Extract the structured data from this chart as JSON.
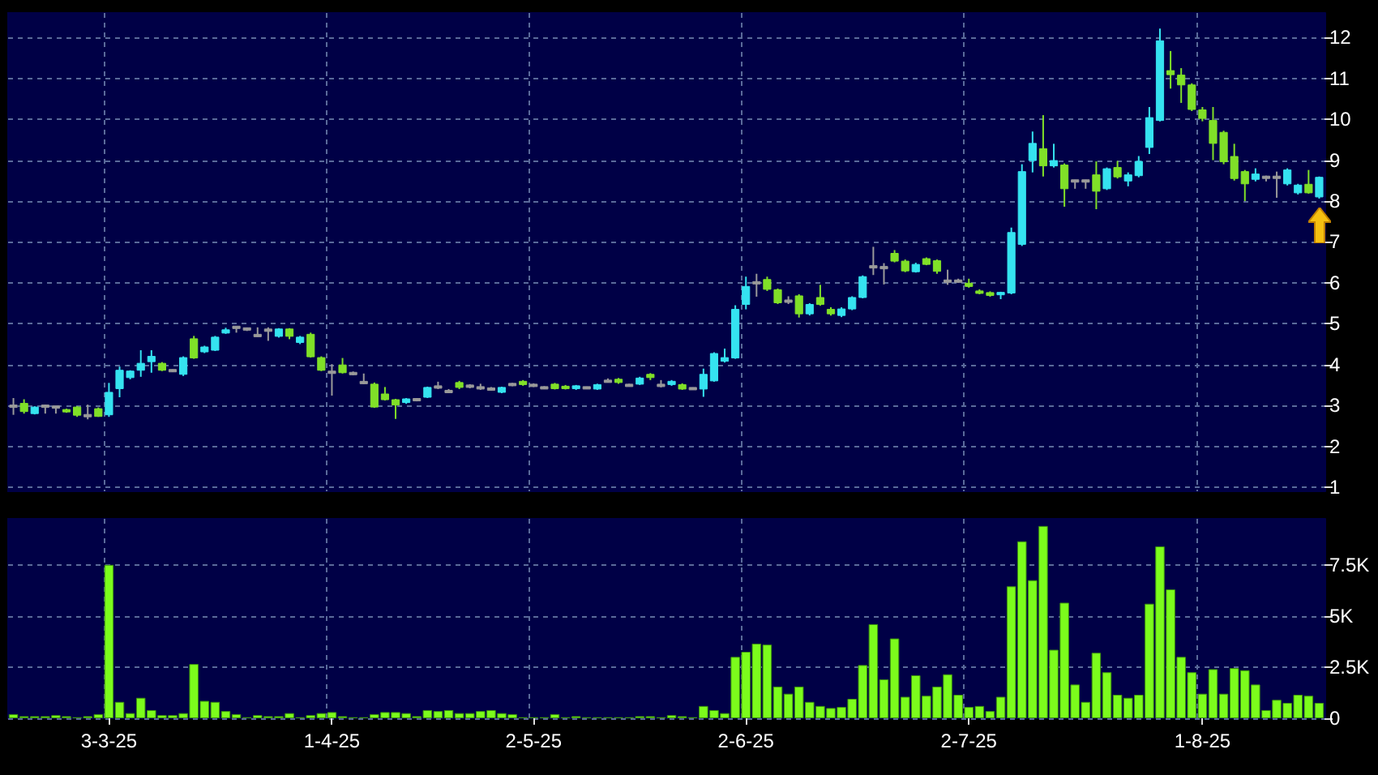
{
  "chart_data": [
    {
      "type": "candlestick",
      "categories": [
        null,
        null,
        null,
        null,
        null,
        null,
        null,
        null,
        null,
        null,
        null,
        null,
        null,
        null,
        null,
        null,
        null,
        null,
        null,
        null,
        null,
        null,
        null,
        null,
        null,
        null,
        null,
        null,
        null,
        null,
        null,
        null,
        null,
        null,
        null,
        null,
        null,
        null,
        null,
        null,
        null,
        null,
        null,
        null,
        null,
        null,
        null,
        null,
        null,
        null,
        null,
        null,
        null,
        null,
        null,
        null,
        null,
        null,
        null,
        null,
        null,
        null,
        null,
        null,
        null,
        null,
        null,
        null,
        null,
        null,
        null,
        null,
        null,
        null,
        null,
        null,
        null,
        null,
        null,
        null,
        null,
        null,
        null,
        null,
        null,
        null,
        null,
        null,
        null,
        null,
        null,
        null,
        null,
        null,
        null,
        null,
        null,
        null,
        null,
        null,
        null,
        null,
        null,
        null,
        null,
        null,
        null,
        null,
        null,
        null,
        null,
        null,
        null,
        null,
        null,
        null,
        null,
        null,
        null,
        null,
        null,
        null,
        null,
        null
      ],
      "ohlc": [
        [
          2.98,
          3.18,
          2.77,
          2.98
        ],
        [
          3.05,
          3.15,
          2.8,
          2.85
        ],
        [
          2.8,
          2.98,
          2.78,
          2.96
        ],
        [
          2.98,
          3.02,
          2.8,
          2.98
        ],
        [
          2.96,
          2.98,
          2.8,
          2.96
        ],
        [
          2.9,
          2.92,
          2.82,
          2.84
        ],
        [
          2.96,
          2.98,
          2.72,
          2.76
        ],
        [
          2.75,
          3.02,
          2.66,
          2.75
        ],
        [
          2.92,
          2.95,
          2.72,
          2.73
        ],
        [
          2.77,
          3.55,
          2.72,
          3.32
        ],
        [
          3.41,
          3.95,
          3.2,
          3.86
        ],
        [
          3.68,
          3.86,
          3.64,
          3.84
        ],
        [
          3.86,
          4.35,
          3.7,
          4.03
        ],
        [
          4.07,
          4.35,
          3.8,
          4.2
        ],
        [
          4.03,
          4.06,
          3.84,
          3.86
        ],
        [
          3.85,
          3.88,
          3.82,
          3.85
        ],
        [
          3.76,
          4.2,
          3.72,
          4.17
        ],
        [
          4.63,
          4.7,
          4.14,
          4.16
        ],
        [
          4.31,
          4.46,
          4.28,
          4.43
        ],
        [
          4.35,
          4.7,
          4.33,
          4.67
        ],
        [
          4.77,
          4.9,
          4.75,
          4.85
        ],
        [
          4.91,
          4.93,
          4.78,
          4.91
        ],
        [
          4.87,
          4.9,
          4.82,
          4.87
        ],
        [
          4.71,
          4.91,
          4.68,
          4.71
        ],
        [
          4.84,
          4.91,
          4.58,
          4.84
        ],
        [
          4.69,
          4.89,
          4.66,
          4.87
        ],
        [
          4.87,
          4.89,
          4.62,
          4.69
        ],
        [
          4.54,
          4.7,
          4.5,
          4.67
        ],
        [
          4.74,
          4.78,
          4.17,
          4.19
        ],
        [
          4.17,
          4.2,
          3.84,
          3.86
        ],
        [
          3.81,
          4.01,
          3.24,
          3.81
        ],
        [
          3.99,
          4.16,
          3.78,
          3.8
        ],
        [
          3.78,
          3.83,
          3.74,
          3.78
        ],
        [
          3.56,
          3.78,
          3.52,
          3.56
        ],
        [
          3.52,
          3.56,
          2.94,
          2.96
        ],
        [
          3.28,
          3.45,
          3.12,
          3.14
        ],
        [
          3.14,
          3.16,
          2.67,
          3.01
        ],
        [
          3.07,
          3.18,
          3.04,
          3.16
        ],
        [
          3.14,
          3.18,
          3.1,
          3.14
        ],
        [
          3.2,
          3.46,
          3.18,
          3.44
        ],
        [
          3.45,
          3.58,
          3.4,
          3.45
        ],
        [
          3.34,
          3.4,
          3.3,
          3.34
        ],
        [
          3.56,
          3.6,
          3.4,
          3.44
        ],
        [
          3.47,
          3.52,
          3.42,
          3.47
        ],
        [
          3.43,
          3.53,
          3.38,
          3.43
        ],
        [
          3.4,
          3.45,
          3.36,
          3.4
        ],
        [
          3.32,
          3.46,
          3.3,
          3.44
        ],
        [
          3.51,
          3.55,
          3.47,
          3.51
        ],
        [
          3.59,
          3.62,
          3.48,
          3.51
        ],
        [
          3.49,
          3.54,
          3.45,
          3.49
        ],
        [
          3.43,
          3.47,
          3.4,
          3.43
        ],
        [
          3.52,
          3.55,
          3.39,
          3.41
        ],
        [
          3.47,
          3.5,
          3.39,
          3.41
        ],
        [
          3.41,
          3.5,
          3.38,
          3.48
        ],
        [
          3.43,
          3.46,
          3.4,
          3.43
        ],
        [
          3.4,
          3.53,
          3.38,
          3.51
        ],
        [
          3.59,
          3.66,
          3.56,
          3.59
        ],
        [
          3.64,
          3.67,
          3.53,
          3.56
        ],
        [
          3.49,
          3.53,
          3.46,
          3.49
        ],
        [
          3.52,
          3.7,
          3.5,
          3.67
        ],
        [
          3.76,
          3.79,
          3.62,
          3.68
        ],
        [
          3.49,
          3.62,
          3.44,
          3.49
        ],
        [
          3.51,
          3.62,
          3.48,
          3.59
        ],
        [
          3.51,
          3.54,
          3.38,
          3.4
        ],
        [
          3.41,
          3.44,
          3.38,
          3.41
        ],
        [
          3.4,
          3.9,
          3.21,
          3.76
        ],
        [
          3.6,
          4.3,
          3.58,
          4.27
        ],
        [
          4.08,
          4.39,
          4.05,
          4.17
        ],
        [
          4.16,
          5.45,
          4.14,
          5.35
        ],
        [
          5.47,
          6.15,
          5.35,
          5.91
        ],
        [
          6.0,
          6.22,
          5.66,
          6.0
        ],
        [
          6.08,
          6.15,
          5.8,
          5.84
        ],
        [
          5.83,
          5.86,
          5.48,
          5.51
        ],
        [
          5.55,
          5.67,
          5.48,
          5.55
        ],
        [
          5.68,
          5.72,
          5.15,
          5.24
        ],
        [
          5.24,
          5.5,
          5.2,
          5.47
        ],
        [
          5.64,
          5.95,
          5.44,
          5.47
        ],
        [
          5.35,
          5.4,
          5.2,
          5.24
        ],
        [
          5.2,
          5.4,
          5.16,
          5.36
        ],
        [
          5.36,
          5.67,
          5.33,
          5.64
        ],
        [
          5.64,
          6.18,
          5.62,
          6.15
        ],
        [
          6.39,
          6.88,
          6.19,
          6.39
        ],
        [
          6.37,
          6.48,
          5.96,
          6.37
        ],
        [
          6.72,
          6.8,
          6.5,
          6.53
        ],
        [
          6.53,
          6.57,
          6.26,
          6.29
        ],
        [
          6.27,
          6.49,
          6.25,
          6.45
        ],
        [
          6.59,
          6.62,
          6.43,
          6.45
        ],
        [
          6.54,
          6.57,
          6.22,
          6.28
        ],
        [
          6.04,
          6.32,
          5.95,
          6.04
        ],
        [
          6.04,
          6.1,
          6.0,
          6.04
        ],
        [
          5.99,
          6.1,
          5.88,
          5.91
        ],
        [
          5.8,
          5.84,
          5.72,
          5.74
        ],
        [
          5.76,
          5.79,
          5.66,
          5.69
        ],
        [
          5.71,
          5.78,
          5.6,
          5.76
        ],
        [
          5.75,
          7.35,
          5.72,
          7.23
        ],
        [
          6.94,
          8.9,
          6.9,
          8.72
        ],
        [
          8.99,
          9.7,
          8.7,
          9.41
        ],
        [
          9.28,
          10.1,
          8.6,
          8.86
        ],
        [
          8.86,
          9.4,
          8.82,
          8.99
        ],
        [
          8.88,
          8.92,
          7.86,
          8.3
        ],
        [
          8.49,
          8.52,
          8.3,
          8.49
        ],
        [
          8.49,
          8.52,
          8.3,
          8.49
        ],
        [
          8.64,
          8.97,
          7.8,
          8.24
        ],
        [
          8.3,
          8.82,
          8.27,
          8.79
        ],
        [
          8.82,
          8.98,
          8.55,
          8.59
        ],
        [
          8.49,
          8.7,
          8.36,
          8.64
        ],
        [
          8.62,
          9.1,
          8.58,
          8.97
        ],
        [
          9.31,
          10.3,
          9.15,
          10.04
        ],
        [
          9.97,
          12.22,
          9.95,
          11.92
        ],
        [
          11.19,
          11.67,
          10.75,
          11.09
        ],
        [
          11.08,
          11.25,
          10.4,
          10.84
        ],
        [
          10.84,
          10.88,
          10.2,
          10.24
        ],
        [
          10.23,
          10.3,
          9.95,
          10.02
        ],
        [
          9.97,
          10.3,
          9.0,
          9.41
        ],
        [
          9.68,
          9.72,
          8.9,
          8.96
        ],
        [
          9.09,
          9.4,
          8.5,
          8.55
        ],
        [
          8.72,
          8.76,
          8.0,
          8.42
        ],
        [
          8.53,
          8.8,
          8.48,
          8.66
        ],
        [
          8.58,
          8.62,
          8.48,
          8.58
        ],
        [
          8.58,
          8.72,
          8.08,
          8.58
        ],
        [
          8.42,
          8.8,
          8.38,
          8.76
        ],
        [
          8.2,
          8.42,
          8.16,
          8.39
        ],
        [
          8.41,
          8.76,
          8.18,
          8.2
        ],
        [
          8.1,
          8.6,
          8.06,
          8.58
        ]
      ],
      "colors": [
        "#9a9a9a",
        "#80e028",
        "#35e3f0",
        "#9a9a9a",
        "#9a9a9a",
        "#80e028",
        "#80e028",
        "#9a9a9a",
        "#80e028",
        "#35e3f0",
        "#35e3f0",
        "#35e3f0",
        "#35e3f0",
        "#35e3f0",
        "#80e028",
        "#9a9a9a",
        "#35e3f0",
        "#80e028",
        "#35e3f0",
        "#35e3f0",
        "#35e3f0",
        "#9a9a9a",
        "#9a9a9a",
        "#9a9a9a",
        "#9a9a9a",
        "#35e3f0",
        "#80e028",
        "#35e3f0",
        "#80e028",
        "#80e028",
        "#9a9a9a",
        "#80e028",
        "#9a9a9a",
        "#9a9a9a",
        "#80e028",
        "#80e028",
        "#80e028",
        "#35e3f0",
        "#9a9a9a",
        "#35e3f0",
        "#9a9a9a",
        "#9a9a9a",
        "#80e028",
        "#9a9a9a",
        "#9a9a9a",
        "#9a9a9a",
        "#35e3f0",
        "#9a9a9a",
        "#80e028",
        "#9a9a9a",
        "#9a9a9a",
        "#80e028",
        "#80e028",
        "#35e3f0",
        "#9a9a9a",
        "#35e3f0",
        "#9a9a9a",
        "#80e028",
        "#9a9a9a",
        "#35e3f0",
        "#80e028",
        "#9a9a9a",
        "#35e3f0",
        "#80e028",
        "#9a9a9a",
        "#35e3f0",
        "#35e3f0",
        "#35e3f0",
        "#35e3f0",
        "#35e3f0",
        "#9a9a9a",
        "#80e028",
        "#80e028",
        "#9a9a9a",
        "#80e028",
        "#35e3f0",
        "#80e028",
        "#80e028",
        "#35e3f0",
        "#35e3f0",
        "#35e3f0",
        "#9a9a9a",
        "#9a9a9a",
        "#80e028",
        "#80e028",
        "#35e3f0",
        "#80e028",
        "#80e028",
        "#9a9a9a",
        "#9a9a9a",
        "#80e028",
        "#80e028",
        "#80e028",
        "#35e3f0",
        "#35e3f0",
        "#35e3f0",
        "#35e3f0",
        "#80e028",
        "#35e3f0",
        "#80e028",
        "#9a9a9a",
        "#9a9a9a",
        "#80e028",
        "#35e3f0",
        "#80e028",
        "#35e3f0",
        "#35e3f0",
        "#35e3f0",
        "#35e3f0",
        "#80e028",
        "#80e028",
        "#80e028",
        "#80e028",
        "#80e028",
        "#80e028",
        "#80e028",
        "#80e028",
        "#35e3f0",
        "#9a9a9a",
        "#9a9a9a",
        "#35e3f0",
        "#35e3f0",
        "#80e028",
        "#35e3f0"
      ],
      "ylim": [
        0.9,
        12.6
      ],
      "yticks": [
        1,
        2,
        3,
        4,
        5,
        6,
        7,
        8,
        9,
        10,
        11,
        12
      ],
      "grid": true,
      "tick_labels": "y"
    },
    {
      "type": "bar",
      "categories": [
        null,
        null,
        null,
        null,
        null,
        null,
        null,
        null,
        null,
        "3-3-25",
        null,
        null,
        null,
        null,
        null,
        null,
        null,
        null,
        null,
        null,
        null,
        null,
        null,
        null,
        null,
        null,
        null,
        null,
        null,
        null,
        "1-4-25",
        null,
        null,
        null,
        null,
        null,
        null,
        null,
        null,
        null,
        null,
        null,
        null,
        null,
        null,
        null,
        null,
        null,
        null,
        "2-5-25",
        null,
        null,
        null,
        null,
        null,
        null,
        null,
        null,
        null,
        null,
        null,
        null,
        null,
        null,
        null,
        null,
        null,
        null,
        null,
        "2-6-25",
        null,
        null,
        null,
        null,
        null,
        null,
        null,
        null,
        null,
        null,
        null,
        null,
        null,
        null,
        null,
        null,
        null,
        null,
        null,
        null,
        "2-7-25",
        null,
        null,
        null,
        null,
        null,
        null,
        null,
        null,
        null,
        null,
        null,
        null,
        null,
        null,
        null,
        null,
        null,
        null,
        null,
        null,
        null,
        "1-8-25",
        null,
        null,
        null,
        null,
        null,
        null,
        null,
        null,
        null,
        null,
        null
      ],
      "values": [
        200,
        100,
        100,
        100,
        150,
        100,
        50,
        100,
        200,
        7500,
        800,
        250,
        1000,
        400,
        150,
        150,
        250,
        2650,
        850,
        800,
        350,
        200,
        50,
        150,
        100,
        100,
        250,
        50,
        150,
        250,
        300,
        100,
        50,
        50,
        200,
        300,
        300,
        250,
        100,
        400,
        350,
        400,
        250,
        250,
        350,
        400,
        250,
        200,
        50,
        50,
        50,
        200,
        50,
        100,
        50,
        50,
        50,
        50,
        50,
        100,
        100,
        50,
        150,
        100,
        50,
        600,
        400,
        250,
        3000,
        3250,
        3650,
        3600,
        1550,
        1200,
        1550,
        800,
        600,
        500,
        550,
        950,
        2600,
        4600,
        1900,
        3900,
        1050,
        2100,
        1100,
        1550,
        2150,
        1150,
        550,
        600,
        350,
        1050,
        6450,
        8650,
        6750,
        9400,
        3350,
        5650,
        1650,
        800,
        3200,
        2250,
        1150,
        1000,
        1150,
        5600,
        8400,
        6300,
        3000,
        2250,
        1200,
        2400,
        1200,
        2450,
        2350,
        1650,
        400,
        900,
        750,
        1150,
        1100,
        750
      ],
      "color": "#7cfc1c",
      "ylim": [
        0,
        9750
      ],
      "yticks": [
        0,
        {
          "value": 2500,
          "label": "2.5K"
        },
        {
          "value": 5000,
          "label": "5K"
        },
        {
          "value": 7500,
          "label": "7.5K"
        }
      ],
      "grid": true
    }
  ]
}
